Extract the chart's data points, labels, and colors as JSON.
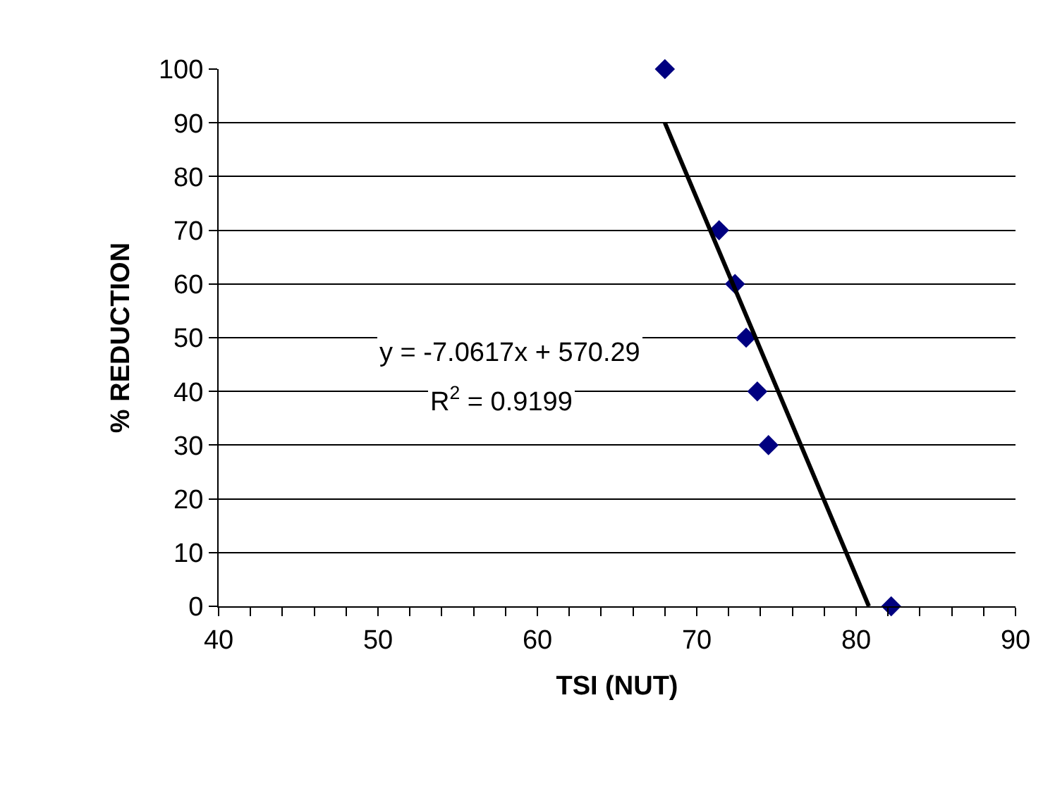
{
  "chart_data": {
    "type": "scatter",
    "xlabel": "TSI (NUT)",
    "ylabel": "% REDUCTION",
    "x": [
      68.0,
      71.4,
      72.4,
      73.1,
      73.8,
      74.5,
      82.2
    ],
    "series": [
      {
        "color": "#000080",
        "marker": "diamond",
        "values": [
          100,
          70,
          60,
          50,
          40,
          30,
          0
        ]
      },
      {
        "type": "line",
        "color": "#000000",
        "marker": "none",
        "line_style": "solid",
        "x": [
          68.0,
          80.8
        ],
        "values": [
          90,
          0
        ]
      }
    ],
    "annotations": [
      "y = -7.0617x + 570.29",
      "R$^{2}$ = 0.9199"
    ],
    "xlim": [
      40,
      90
    ],
    "ylim": [
      0,
      100
    ],
    "xticks": [
      40,
      {
        "value": 42,
        "label": null
      },
      {
        "value": 44,
        "label": null
      },
      {
        "value": 46,
        "label": null
      },
      {
        "value": 48,
        "label": null
      },
      50,
      {
        "value": 52,
        "label": null
      },
      {
        "value": 54,
        "label": null
      },
      {
        "value": 56,
        "label": null
      },
      {
        "value": 58,
        "label": null
      },
      60,
      {
        "value": 62,
        "label": null
      },
      {
        "value": 64,
        "label": null
      },
      {
        "value": 66,
        "label": null
      },
      {
        "value": 68,
        "label": null
      },
      70,
      {
        "value": 72,
        "label": null
      },
      {
        "value": 74,
        "label": null
      },
      {
        "value": 76,
        "label": null
      },
      {
        "value": 78,
        "label": null
      },
      80,
      {
        "value": 82,
        "label": null
      },
      {
        "value": 84,
        "label": null
      },
      {
        "value": 86,
        "label": null
      },
      {
        "value": 88,
        "label": null
      },
      90
    ],
    "yticks": [
      0,
      10,
      20,
      30,
      40,
      50,
      60,
      70,
      80,
      90,
      100
    ],
    "grid": "y"
  }
}
